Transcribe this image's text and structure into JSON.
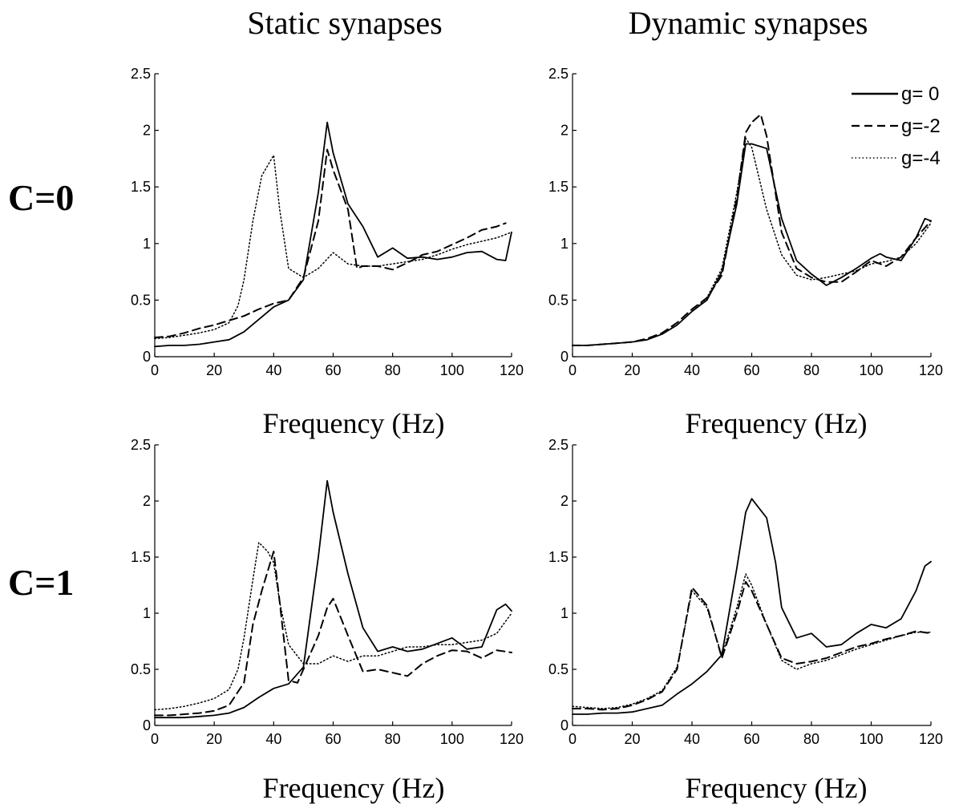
{
  "figure": {
    "col_titles": [
      "Static synapses",
      "Dynamic synapses"
    ],
    "row_labels": [
      "C=0",
      "C=1"
    ]
  },
  "legend": {
    "location": "top-right of C=0 / Dynamic synapses panel",
    "entries": [
      {
        "label": "g= 0",
        "style": "solid"
      },
      {
        "label": "g=-2",
        "style": "dashed"
      },
      {
        "label": "g=-4",
        "style": "dotted"
      }
    ]
  },
  "chart_data": [
    {
      "type": "line",
      "panel": "C=0 / Static synapses",
      "xlabel": "Frequency (Hz)",
      "ylabel": "",
      "xlim": [
        0,
        120
      ],
      "ylim": [
        0,
        2.5
      ],
      "xticks": [
        "0",
        "20",
        "40",
        "60",
        "80",
        "100",
        "120"
      ],
      "yticks": [
        "0",
        "0.5",
        "1",
        "1.5",
        "2",
        "2.5"
      ],
      "grid": false,
      "series": [
        {
          "name": "g= 0",
          "style": "solid",
          "color": "#000000",
          "x": [
            0,
            5,
            10,
            15,
            20,
            25,
            30,
            35,
            40,
            45,
            50,
            55,
            58,
            60,
            65,
            70,
            75,
            80,
            85,
            90,
            95,
            100,
            105,
            110,
            115,
            118,
            120
          ],
          "y": [
            0.09,
            0.1,
            0.1,
            0.11,
            0.13,
            0.15,
            0.22,
            0.33,
            0.44,
            0.5,
            0.68,
            1.45,
            2.07,
            1.8,
            1.35,
            1.15,
            0.88,
            0.96,
            0.87,
            0.88,
            0.86,
            0.88,
            0.92,
            0.93,
            0.86,
            0.85,
            1.1
          ]
        },
        {
          "name": "g=-2",
          "style": "dashed",
          "color": "#000000",
          "x": [
            0,
            5,
            10,
            15,
            20,
            25,
            30,
            35,
            40,
            45,
            50,
            55,
            58,
            60,
            65,
            68,
            70,
            75,
            80,
            85,
            90,
            95,
            100,
            105,
            110,
            115,
            118
          ],
          "y": [
            0.17,
            0.18,
            0.21,
            0.25,
            0.28,
            0.32,
            0.36,
            0.42,
            0.47,
            0.5,
            0.7,
            1.2,
            1.83,
            1.65,
            1.3,
            0.78,
            0.8,
            0.8,
            0.77,
            0.83,
            0.9,
            0.93,
            0.99,
            1.05,
            1.12,
            1.15,
            1.18
          ]
        },
        {
          "name": "g=-4",
          "style": "dotted",
          "color": "#000000",
          "x": [
            0,
            5,
            10,
            15,
            20,
            25,
            28,
            30,
            33,
            36,
            40,
            42,
            45,
            50,
            55,
            60,
            65,
            70,
            75,
            80,
            85,
            90,
            95,
            100,
            105,
            110,
            115,
            120
          ],
          "y": [
            0.16,
            0.17,
            0.19,
            0.21,
            0.24,
            0.3,
            0.45,
            0.68,
            1.2,
            1.6,
            1.78,
            1.3,
            0.78,
            0.7,
            0.78,
            0.92,
            0.82,
            0.8,
            0.8,
            0.82,
            0.84,
            0.86,
            0.9,
            0.95,
            0.99,
            1.02,
            1.05,
            1.1
          ]
        }
      ]
    },
    {
      "type": "line",
      "panel": "C=0 / Dynamic synapses",
      "xlabel": "Frequency (Hz)",
      "ylabel": "",
      "xlim": [
        0,
        120
      ],
      "ylim": [
        0,
        2.5
      ],
      "xticks": [
        "0",
        "20",
        "40",
        "60",
        "80",
        "100",
        "120"
      ],
      "yticks": [
        "0",
        "0.5",
        "1",
        "1.5",
        "2",
        "2.5"
      ],
      "grid": false,
      "series": [
        {
          "name": "g= 0",
          "style": "solid",
          "color": "#000000",
          "x": [
            0,
            5,
            10,
            15,
            20,
            25,
            30,
            35,
            40,
            45,
            50,
            55,
            58,
            60,
            65,
            70,
            75,
            80,
            85,
            90,
            95,
            100,
            103,
            105,
            110,
            115,
            118,
            120
          ],
          "y": [
            0.1,
            0.1,
            0.11,
            0.12,
            0.13,
            0.15,
            0.2,
            0.28,
            0.4,
            0.5,
            0.75,
            1.35,
            1.88,
            1.88,
            1.84,
            1.22,
            0.85,
            0.73,
            0.63,
            0.7,
            0.78,
            0.87,
            0.91,
            0.88,
            0.85,
            1.05,
            1.22,
            1.2
          ]
        },
        {
          "name": "g=-2",
          "style": "dashed",
          "color": "#000000",
          "x": [
            0,
            5,
            10,
            15,
            20,
            25,
            30,
            35,
            40,
            45,
            50,
            55,
            58,
            60,
            63,
            65,
            70,
            75,
            80,
            85,
            90,
            95,
            100,
            105,
            110,
            115,
            120
          ],
          "y": [
            0.1,
            0.1,
            0.11,
            0.12,
            0.13,
            0.16,
            0.21,
            0.3,
            0.42,
            0.52,
            0.72,
            1.4,
            1.98,
            2.07,
            2.14,
            1.95,
            1.1,
            0.78,
            0.7,
            0.66,
            0.66,
            0.75,
            0.85,
            0.8,
            0.88,
            1.05,
            1.2
          ]
        },
        {
          "name": "g=-4",
          "style": "dotted",
          "color": "#000000",
          "x": [
            0,
            5,
            10,
            15,
            20,
            25,
            30,
            35,
            40,
            45,
            50,
            55,
            58,
            60,
            65,
            70,
            75,
            80,
            85,
            90,
            95,
            100,
            105,
            110,
            115,
            120
          ],
          "y": [
            0.1,
            0.1,
            0.11,
            0.12,
            0.13,
            0.15,
            0.2,
            0.28,
            0.4,
            0.52,
            0.78,
            1.45,
            1.93,
            1.85,
            1.3,
            0.9,
            0.72,
            0.68,
            0.7,
            0.73,
            0.76,
            0.82,
            0.84,
            0.88,
            1.0,
            1.18
          ]
        }
      ]
    },
    {
      "type": "line",
      "panel": "C=1 / Static synapses",
      "xlabel": "Frequency (Hz)",
      "ylabel": "",
      "xlim": [
        0,
        120
      ],
      "ylim": [
        0,
        2.5
      ],
      "xticks": [
        "0",
        "20",
        "40",
        "60",
        "80",
        "100",
        "120"
      ],
      "yticks": [
        "0",
        "0.5",
        "1",
        "1.5",
        "2",
        "2.5"
      ],
      "grid": false,
      "series": [
        {
          "name": "g= 0",
          "style": "solid",
          "color": "#000000",
          "x": [
            0,
            5,
            10,
            15,
            20,
            25,
            30,
            35,
            40,
            45,
            50,
            55,
            58,
            60,
            65,
            70,
            75,
            80,
            85,
            90,
            95,
            100,
            105,
            110,
            115,
            118,
            120
          ],
          "y": [
            0.07,
            0.07,
            0.07,
            0.08,
            0.09,
            0.11,
            0.16,
            0.25,
            0.33,
            0.37,
            0.52,
            1.5,
            2.18,
            1.9,
            1.35,
            0.87,
            0.66,
            0.7,
            0.66,
            0.68,
            0.73,
            0.78,
            0.68,
            0.7,
            1.03,
            1.08,
            1.02
          ]
        },
        {
          "name": "g=-2",
          "style": "dashed",
          "color": "#000000",
          "x": [
            0,
            5,
            10,
            15,
            20,
            25,
            28,
            30,
            33,
            36,
            40,
            42,
            45,
            48,
            50,
            55,
            58,
            60,
            65,
            70,
            75,
            80,
            85,
            90,
            95,
            100,
            105,
            110,
            115,
            120
          ],
          "y": [
            0.09,
            0.09,
            0.1,
            0.11,
            0.13,
            0.18,
            0.3,
            0.38,
            0.9,
            1.2,
            1.55,
            1.1,
            0.4,
            0.38,
            0.5,
            0.8,
            1.05,
            1.13,
            0.8,
            0.48,
            0.5,
            0.47,
            0.44,
            0.55,
            0.62,
            0.67,
            0.66,
            0.6,
            0.67,
            0.65
          ]
        },
        {
          "name": "g=-4",
          "style": "dotted",
          "color": "#000000",
          "x": [
            0,
            5,
            10,
            15,
            20,
            25,
            28,
            30,
            33,
            35,
            38,
            40,
            42,
            45,
            50,
            55,
            60,
            65,
            70,
            75,
            80,
            85,
            90,
            95,
            100,
            105,
            110,
            115,
            120
          ],
          "y": [
            0.14,
            0.15,
            0.17,
            0.2,
            0.24,
            0.32,
            0.5,
            0.78,
            1.3,
            1.63,
            1.55,
            1.45,
            1.1,
            0.72,
            0.55,
            0.55,
            0.62,
            0.57,
            0.62,
            0.62,
            0.66,
            0.7,
            0.7,
            0.72,
            0.72,
            0.74,
            0.76,
            0.82,
            1.0
          ]
        }
      ]
    },
    {
      "type": "line",
      "panel": "C=1 / Dynamic synapses",
      "xlabel": "Frequency (Hz)",
      "ylabel": "",
      "xlim": [
        0,
        120
      ],
      "ylim": [
        0,
        2.5
      ],
      "xticks": [
        "0",
        "20",
        "40",
        "60",
        "80",
        "100",
        "120"
      ],
      "yticks": [
        "0",
        "0.5",
        "1",
        "1.5",
        "2",
        "2.5"
      ],
      "grid": false,
      "series": [
        {
          "name": "g= 0",
          "style": "solid",
          "color": "#000000",
          "x": [
            0,
            5,
            10,
            15,
            20,
            25,
            30,
            35,
            40,
            45,
            50,
            55,
            58,
            60,
            65,
            68,
            70,
            75,
            80,
            85,
            90,
            95,
            100,
            105,
            110,
            115,
            118,
            120
          ],
          "y": [
            0.1,
            0.1,
            0.11,
            0.11,
            0.12,
            0.15,
            0.18,
            0.28,
            0.37,
            0.48,
            0.63,
            1.4,
            1.9,
            2.02,
            1.85,
            1.45,
            1.05,
            0.78,
            0.82,
            0.7,
            0.72,
            0.82,
            0.9,
            0.87,
            0.95,
            1.2,
            1.42,
            1.46
          ]
        },
        {
          "name": "g=-2",
          "style": "dashed",
          "color": "#000000",
          "x": [
            0,
            5,
            10,
            15,
            20,
            25,
            30,
            35,
            40,
            45,
            50,
            55,
            58,
            60,
            65,
            70,
            75,
            80,
            85,
            90,
            95,
            100,
            105,
            110,
            115,
            120
          ],
          "y": [
            0.15,
            0.15,
            0.14,
            0.15,
            0.18,
            0.23,
            0.3,
            0.5,
            1.23,
            1.07,
            0.6,
            1.0,
            1.28,
            1.2,
            0.9,
            0.6,
            0.55,
            0.57,
            0.6,
            0.65,
            0.7,
            0.73,
            0.77,
            0.8,
            0.84,
            0.82
          ]
        },
        {
          "name": "g=-4",
          "style": "dotted",
          "color": "#000000",
          "x": [
            0,
            5,
            10,
            15,
            20,
            25,
            30,
            35,
            40,
            45,
            50,
            55,
            58,
            60,
            65,
            70,
            75,
            80,
            85,
            90,
            95,
            100,
            105,
            110,
            115,
            120
          ],
          "y": [
            0.17,
            0.16,
            0.15,
            0.16,
            0.19,
            0.24,
            0.31,
            0.52,
            1.2,
            1.05,
            0.62,
            1.05,
            1.35,
            1.25,
            0.9,
            0.58,
            0.5,
            0.55,
            0.58,
            0.63,
            0.68,
            0.72,
            0.76,
            0.8,
            0.83,
            0.83
          ]
        }
      ]
    }
  ]
}
